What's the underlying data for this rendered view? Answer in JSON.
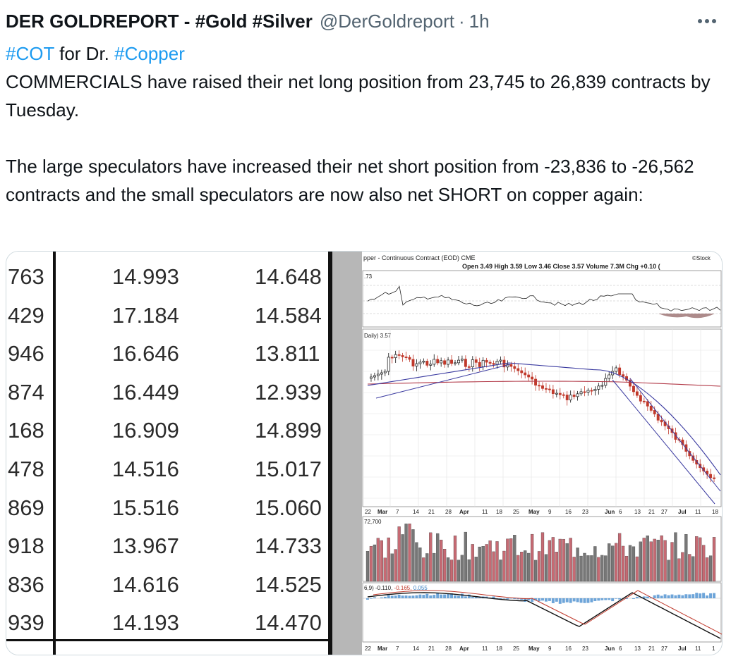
{
  "tweet": {
    "author_name": "DER GOLDREPORT - #Gold #Silver",
    "author_handle": "@DerGoldreport",
    "separator": "·",
    "time": "1h",
    "line1_tag1": "#COT",
    "line1_mid": " for Dr. ",
    "line1_tag2": "#Copper",
    "para1": "COMMERCIALS have raised their net long position from 23,745 to 26,839 contracts by Tuesday.",
    "para2": "The large speculators have increased their net short position from -23,836 to -26,562 contracts and the small speculators are now also net SHORT on copper again:"
  },
  "table": {
    "rows": [
      [
        "763",
        "14.993",
        "14.648"
      ],
      [
        "429",
        "17.184",
        "14.584"
      ],
      [
        "946",
        "16.646",
        "13.811"
      ],
      [
        "874",
        "16.449",
        "12.939"
      ],
      [
        "168",
        "16.909",
        "14.899"
      ],
      [
        "478",
        "14.516",
        "15.017"
      ],
      [
        "869",
        "15.516",
        "15.060"
      ],
      [
        "918",
        "13.967",
        "14.733"
      ],
      [
        "836",
        "14.616",
        "14.525"
      ],
      [
        "939",
        "14.193",
        "14.470"
      ]
    ]
  },
  "chart": {
    "title": "pper - Continuous Contract (EOD) CME",
    "brand": "©Stock",
    "ohlc": "Open 3.49  High 3.59  Low 3.46  Close 3.57  Volume 7.3M  Chg +0.10 (",
    "rsi_label": ".73",
    "price_label": "Daily) 3.57",
    "volume_label": "72,700",
    "macd_label": "6,9) -0.110, -0.165, 0.055",
    "macd_label_a": "6,9) -0.110,",
    "macd_label_b": " -0.165,",
    "macd_label_c": " 0.055",
    "x_labels_mid": [
      "22",
      "Mar",
      "7",
      "14",
      "21",
      "28",
      "Apr",
      "11",
      "18",
      "25",
      "May",
      "9",
      "16",
      "23",
      "Jun",
      "6",
      "13",
      "21",
      "27",
      "Jul",
      "11",
      "18"
    ],
    "x_labels_bottom": [
      "22",
      "Mar",
      "7",
      "14",
      "21",
      "28",
      "Apr",
      "11",
      "18",
      "25",
      "May",
      "9",
      "16",
      "23",
      "Jun",
      "6",
      "13",
      "21",
      "27",
      "Jul",
      "11",
      "1"
    ]
  },
  "icons": {
    "more": "more-horizontal-icon"
  },
  "colors": {
    "hashtag": "#1d9bf0",
    "secondary_text": "#536471",
    "candle_up": "#111111",
    "candle_down": "#c0392b"
  }
}
